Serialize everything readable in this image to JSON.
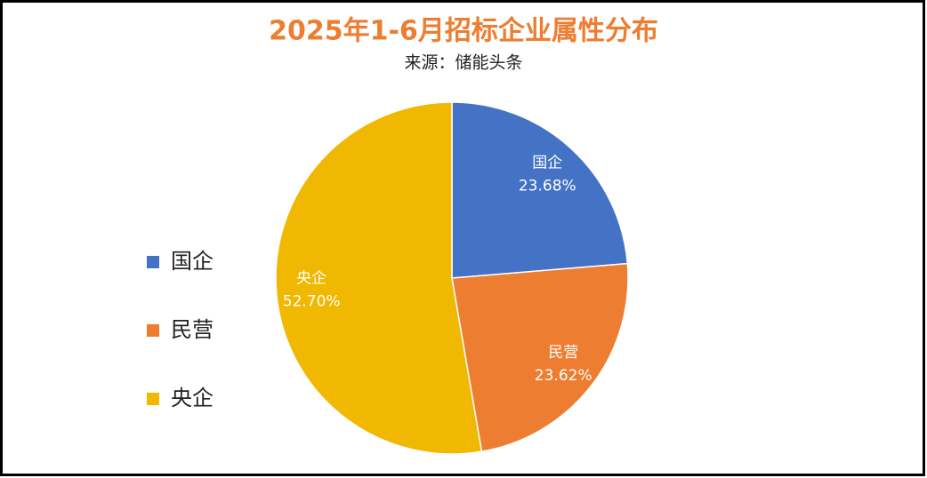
{
  "chart_data": {
    "type": "pie",
    "title": "2025年1-6月招标企业属性分布",
    "subtitle": "来源：储能头条",
    "categories": [
      "国企",
      "民营",
      "央企"
    ],
    "values": [
      23.68,
      23.62,
      52.7
    ],
    "value_labels": [
      "23.68%",
      "23.62%",
      "52.70%"
    ],
    "colors": [
      "#4472c4",
      "#ed7d31",
      "#f0b800"
    ],
    "legend": "left"
  }
}
